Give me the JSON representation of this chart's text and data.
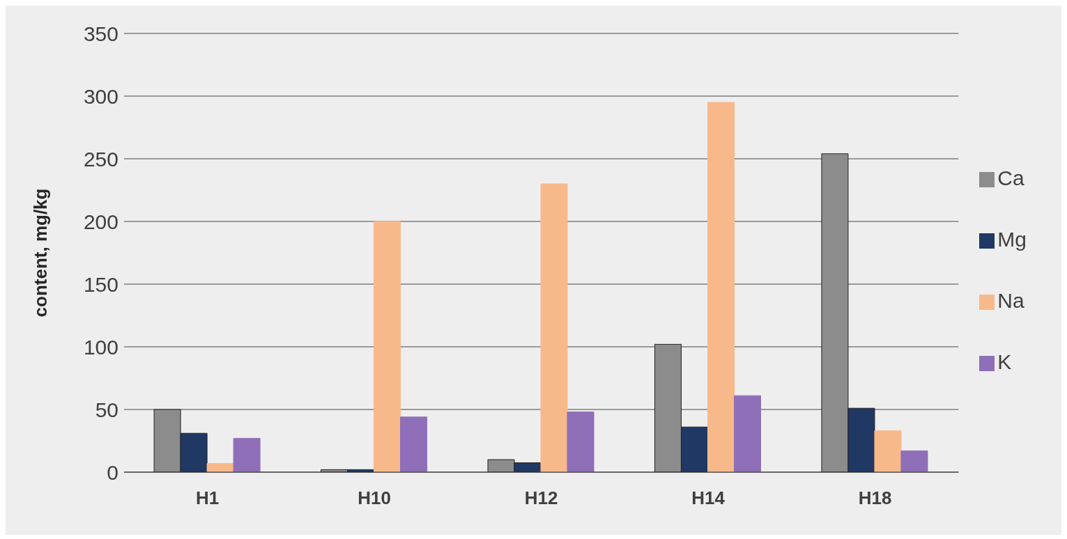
{
  "chart_data": {
    "type": "bar",
    "ylabel": "content, mg/kg",
    "categories": [
      "H1",
      "H10",
      "H12",
      "H14",
      "H18"
    ],
    "series": [
      {
        "name": "Ca",
        "color": "#8c8c8c",
        "values": [
          50,
          2,
          10,
          102,
          254
        ]
      },
      {
        "name": "Mg",
        "color": "#1f3864",
        "values": [
          31,
          2,
          7.5,
          36,
          51
        ]
      },
      {
        "name": "Na",
        "color": "#f8b98a",
        "values": [
          7,
          200,
          230,
          295,
          33
        ]
      },
      {
        "name": "K",
        "color": "#8e6fb8",
        "values": [
          27,
          44,
          48,
          61,
          17
        ]
      }
    ],
    "ylim": [
      0,
      350
    ],
    "yticks": [
      0,
      50,
      100,
      150,
      200,
      250,
      300,
      350
    ],
    "grid": "y",
    "legend": "right"
  }
}
